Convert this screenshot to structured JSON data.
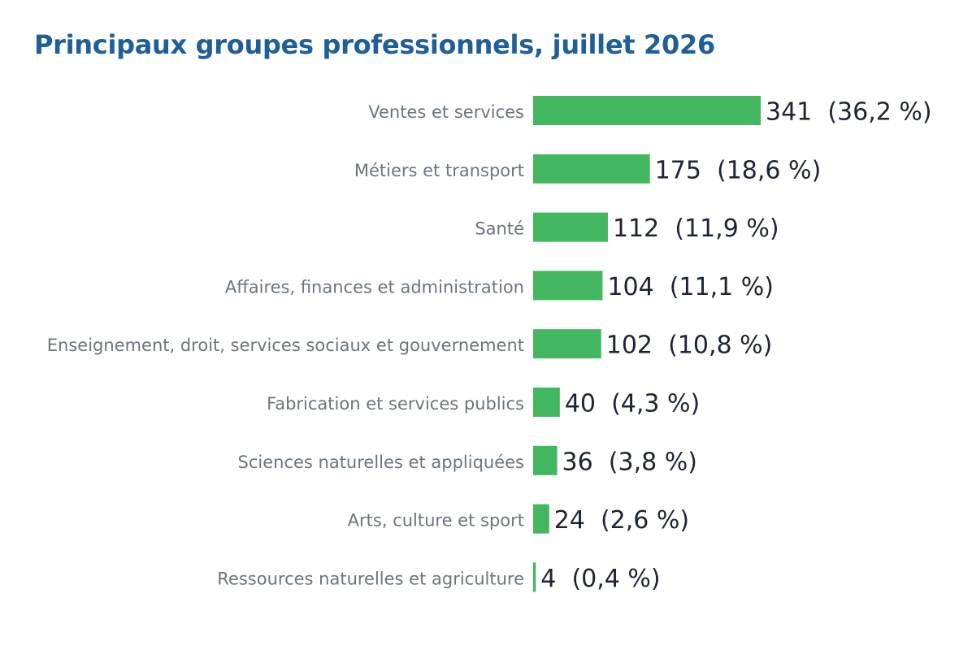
{
  "chart_data": {
    "type": "bar",
    "orientation": "horizontal",
    "title": "Principaux groupes professionnels, juillet 2026",
    "categories": [
      "Ventes et services",
      "Métiers et transport",
      "Santé",
      "Affaires, finances et administration",
      "Enseignement, droit, services sociaux et gouvernement",
      "Fabrication et services publics",
      "Sciences naturelles et appliquées",
      "Arts, culture et sport",
      "Ressources naturelles et agriculture"
    ],
    "values": [
      341,
      175,
      112,
      104,
      102,
      40,
      36,
      24,
      4
    ],
    "data_labels": [
      "341  (36,2 %)",
      "175  (18,6 %)",
      "112  (11,9 %)",
      "104  (11,1 %)",
      "102  (10,8 %)",
      "40  (4,3 %)",
      "36  (3,8 %)",
      "24  (2,6 %)",
      "4  (0,4 %)"
    ],
    "xlim": [
      0,
      341
    ],
    "grid": false,
    "legend": "none",
    "bar_color": "#43b75f"
  }
}
